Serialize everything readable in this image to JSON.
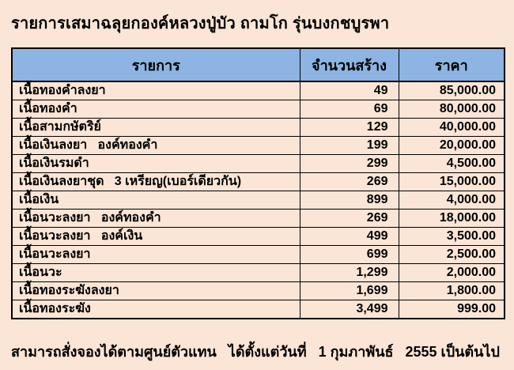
{
  "title": "รายการเสมาฉลุยกองค์หลวงปู่บัว ถามโก รุ่นบงกชบูรพา",
  "colors": {
    "page_background": "#FBE5D6",
    "header_background": "#8DB4E2",
    "border": "#000000",
    "text": "#000000"
  },
  "table": {
    "header": {
      "item": "รายการ",
      "quantity": "จำนวนสร้าง",
      "price": "ราคา"
    },
    "rows": [
      {
        "item": "เนื้อทองคำลงยา",
        "quantity": "49",
        "price": "85,000.00"
      },
      {
        "item": "เนื้อทองคำ",
        "quantity": "69",
        "price": "80,000.00"
      },
      {
        "item": "เนื้อสามกษัตริย์",
        "quantity": "129",
        "price": "40,000.00"
      },
      {
        "item": "เนื้อเงินลงยา   องค์ทองคำ",
        "quantity": "199",
        "price": "20,000.00"
      },
      {
        "item": "เนื้อเงินรมดำ",
        "quantity": "299",
        "price": "4,500.00"
      },
      {
        "item": "เนื้อเงินลงยาชุด   3 เหรียญ(เบอร์เดียวกัน)",
        "quantity": "269",
        "price": "15,000.00"
      },
      {
        "item": "เนื้อเงิน",
        "quantity": "899",
        "price": "4,000.00"
      },
      {
        "item": "เนื้อนวะลงยา   องค์ทองคำ",
        "quantity": "269",
        "price": "18,000.00"
      },
      {
        "item": "เนื้อนวะลงยา   องค์เงิน",
        "quantity": "499",
        "price": "3,500.00"
      },
      {
        "item": "เนื้อนวะลงยา",
        "quantity": "699",
        "price": "2,500.00"
      },
      {
        "item": "เนื้อนวะ",
        "quantity": "1,299",
        "price": "2,000.00"
      },
      {
        "item": "เนื้อทองระฆังลงยา",
        "quantity": "1,699",
        "price": "1,800.00"
      },
      {
        "item": "เนื้อทองระฆัง",
        "quantity": "3,499",
        "price": "999.00"
      }
    ]
  },
  "footer": "สามารถสั่งจองได้ตามศูนย์ตัวแทน   ได้ตั้งแต่วันที่   1 กุมภาพันธ์   2555 เป็นต้นไป"
}
